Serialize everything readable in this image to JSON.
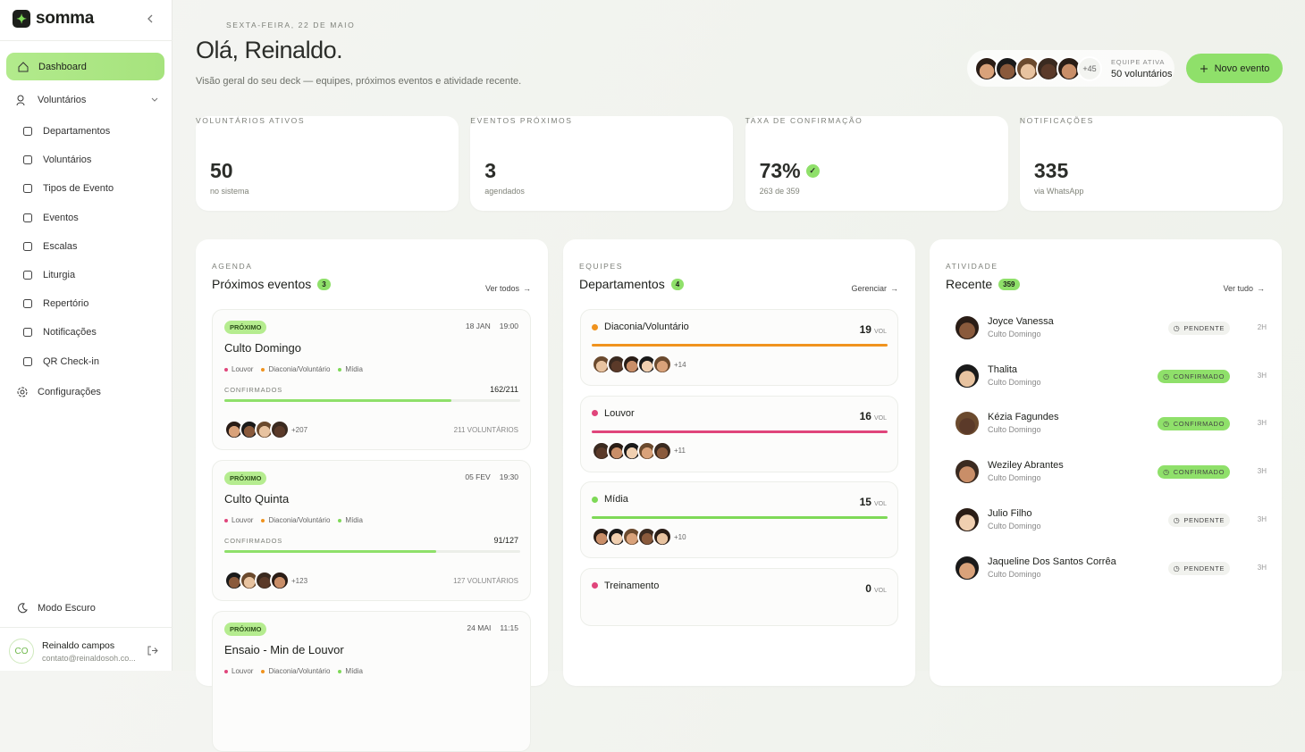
{
  "sidebar": {
    "brand": "somma",
    "main": "Dashboard",
    "group": "Voluntários",
    "sub_nav": [
      "Departamentos",
      "Voluntários",
      "Tipos de Evento",
      "Eventos",
      "Escalas",
      "Liturgia",
      "Repertório",
      "Notificações",
      "QR Check-in"
    ],
    "settings": "Configurações",
    "dark_mode": "Modo Escuro",
    "user": {
      "initials": "CO",
      "name": "Reinaldo campos",
      "email": "contato@reinaldosoh.co..."
    }
  },
  "header": {
    "date": "SEXTA-FEIRA, 22 DE MAIO",
    "title": "Olá, Reinaldo.",
    "subtitle": "Visão geral do seu deck — equipes, próximos eventos e atividade recente.",
    "team": {
      "more": "+45",
      "label": "EQUIPE ATIVA",
      "value": "50 voluntários"
    },
    "button": "Novo evento"
  },
  "stats": [
    {
      "label": "VOLUNTÁRIOS ATIVOS",
      "value": "50",
      "sub": "no sistema"
    },
    {
      "label": "EVENTOS PRÓXIMOS",
      "value": "3",
      "sub": "agendados"
    },
    {
      "label": "TAXA DE CONFIRMAÇÃO",
      "value": "73%",
      "sub": "263 de 359"
    },
    {
      "label": "NOTIFICAÇÕES",
      "value": "335",
      "sub": "via WhatsApp"
    }
  ],
  "events": {
    "kicker": "AGENDA",
    "title": "Próximos eventos",
    "count": "3",
    "link": "Ver todos",
    "items": [
      {
        "badge": "PRÓXIMO",
        "date": "18 JAN",
        "time": "19:00",
        "name": "Culto Domingo",
        "tags": [
          {
            "name": "Louvor",
            "color": "#e0457b"
          },
          {
            "name": "Diaconia/Voluntário",
            "color": "#f0931e"
          },
          {
            "name": "Mídia",
            "color": "#7ed957"
          }
        ],
        "confirmed_label": "CONFIRMADOS",
        "confirmed": 162,
        "total": 211,
        "ratio": "162/211",
        "more": "+207",
        "volunteers": "211 VOLUNTÁRIOS"
      },
      {
        "badge": "PRÓXIMO",
        "date": "05 FEV",
        "time": "19:30",
        "name": "Culto Quinta",
        "tags": [
          {
            "name": "Louvor",
            "color": "#e0457b"
          },
          {
            "name": "Diaconia/Voluntário",
            "color": "#f0931e"
          },
          {
            "name": "Mídia",
            "color": "#7ed957"
          }
        ],
        "confirmed_label": "CONFIRMADOS",
        "confirmed": 91,
        "total": 127,
        "ratio": "91/127",
        "more": "+123",
        "volunteers": "127 VOLUNTÁRIOS"
      },
      {
        "badge": "PRÓXIMO",
        "date": "24 MAI",
        "time": "11:15",
        "name": "Ensaio - Min de Louvor",
        "tags": [
          {
            "name": "Louvor",
            "color": "#e0457b"
          },
          {
            "name": "Diaconia/Voluntário",
            "color": "#f0931e"
          },
          {
            "name": "Mídia",
            "color": "#7ed957"
          }
        ]
      }
    ]
  },
  "departments": {
    "kicker": "EQUIPES",
    "title": "Departamentos",
    "count": "4",
    "link": "Gerenciar",
    "items": [
      {
        "name": "Diaconia/Voluntário",
        "color": "#f0931e",
        "count": "19",
        "unit": "VOL",
        "more": "+14"
      },
      {
        "name": "Louvor",
        "color": "#e0457b",
        "count": "16",
        "unit": "VOL",
        "more": "+11"
      },
      {
        "name": "Mídia",
        "color": "#7ed957",
        "count": "15",
        "unit": "VOL",
        "more": "+10"
      },
      {
        "name": "Treinamento",
        "color": "#e0457b",
        "count": "0",
        "unit": "VOL"
      }
    ]
  },
  "activity": {
    "kicker": "ATIVIDADE",
    "title": "Recente",
    "count": "359",
    "link": "Ver tudo",
    "items": [
      {
        "name": "Joyce Vanessa",
        "sub": "Culto Domingo",
        "status": "PENDENTE",
        "status_color": "#f1f2ee",
        "time": "2H"
      },
      {
        "name": "Thalita",
        "sub": "Culto Domingo",
        "status": "CONFIRMADO",
        "status_color": "#8fe06a",
        "time": "3H"
      },
      {
        "name": "Kézia Fagundes",
        "sub": "Culto Domingo",
        "status": "CONFIRMADO",
        "status_color": "#8fe06a",
        "time": "3H"
      },
      {
        "name": "Weziley Abrantes",
        "sub": "Culto Domingo",
        "status": "CONFIRMADO",
        "status_color": "#8fe06a",
        "time": "3H"
      },
      {
        "name": "Julio Filho",
        "sub": "Culto Domingo",
        "status": "PENDENTE",
        "status_color": "#f1f2ee",
        "time": "3H"
      },
      {
        "name": "Jaqueline Dos Santos Corrêa",
        "sub": "Culto Domingo",
        "status": "PENDENTE",
        "status_color": "#f1f2ee",
        "time": "3H"
      }
    ]
  }
}
